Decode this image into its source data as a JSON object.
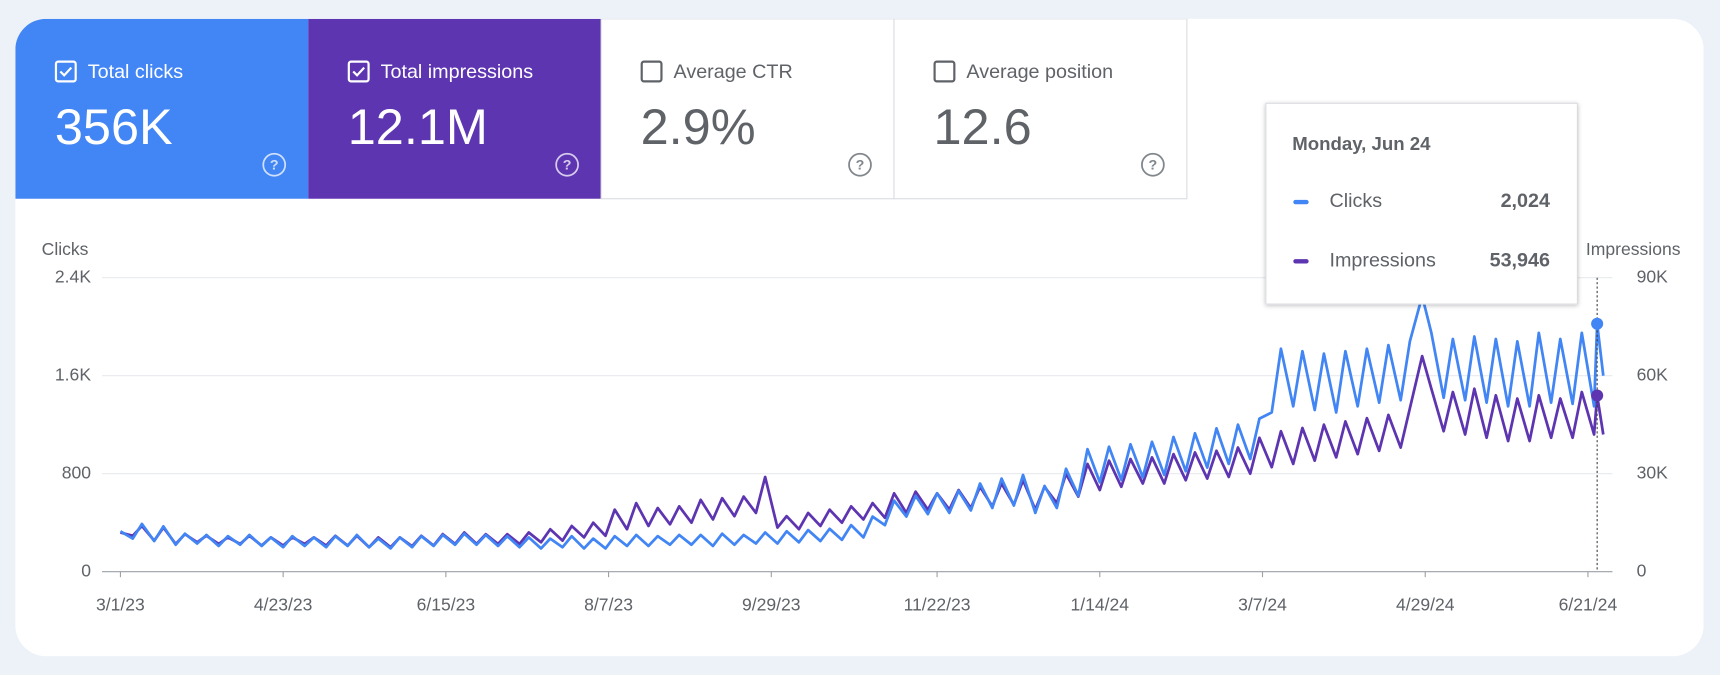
{
  "metrics": [
    {
      "label": "Total clicks",
      "value": "356K",
      "checked": true,
      "color": "#4285f4"
    },
    {
      "label": "Total impressions",
      "value": "12.1M",
      "checked": true,
      "color": "#5e35b1"
    },
    {
      "label": "Average CTR",
      "value": "2.9%",
      "checked": false
    },
    {
      "label": "Average position",
      "value": "12.6",
      "checked": false
    }
  ],
  "chart_data": {
    "type": "line",
    "ylabel": "Clicks",
    "y2label": "Impressions",
    "grid": true,
    "x": [
      "3/1/23",
      "3/5/23",
      "3/8/23",
      "3/12/23",
      "3/15/23",
      "3/19/23",
      "3/22/23",
      "3/26/23",
      "3/29/23",
      "4/2/23",
      "4/5/23",
      "4/9/23",
      "4/12/23",
      "4/16/23",
      "4/19/23",
      "4/23/23",
      "4/26/23",
      "4/30/23",
      "5/3/23",
      "5/7/23",
      "5/10/23",
      "5/14/23",
      "5/17/23",
      "5/21/23",
      "5/24/23",
      "5/28/23",
      "5/31/23",
      "6/4/23",
      "6/7/23",
      "6/11/23",
      "6/14/23",
      "6/18/23",
      "6/21/23",
      "6/25/23",
      "6/28/23",
      "7/2/23",
      "7/5/23",
      "7/9/23",
      "7/12/23",
      "7/16/23",
      "7/19/23",
      "7/23/23",
      "7/26/23",
      "7/30/23",
      "8/2/23",
      "8/6/23",
      "8/9/23",
      "8/13/23",
      "8/16/23",
      "8/20/23",
      "8/23/23",
      "8/27/23",
      "8/30/23",
      "9/3/23",
      "9/6/23",
      "9/10/23",
      "9/13/23",
      "9/17/23",
      "9/20/23",
      "9/24/23",
      "9/27/23",
      "10/1/23",
      "10/4/23",
      "10/8/23",
      "10/11/23",
      "10/15/23",
      "10/18/23",
      "10/22/23",
      "10/25/23",
      "10/29/23",
      "11/1/23",
      "11/5/23",
      "11/8/23",
      "11/12/23",
      "11/15/23",
      "11/19/23",
      "11/22/23",
      "11/26/23",
      "11/29/23",
      "12/3/23",
      "12/6/23",
      "12/10/23",
      "12/13/23",
      "12/17/23",
      "12/20/23",
      "12/24/23",
      "12/27/23",
      "12/31/23",
      "1/3/24",
      "1/7/24",
      "1/10/24",
      "1/14/24",
      "1/17/24",
      "1/21/24",
      "1/24/24",
      "1/28/24",
      "1/31/24",
      "2/4/24",
      "2/7/24",
      "2/11/24",
      "2/14/24",
      "2/18/24",
      "2/21/24",
      "2/25/24",
      "2/28/24",
      "3/3/24",
      "3/6/24",
      "3/10/24",
      "3/13/24",
      "3/17/24",
      "3/20/24",
      "3/24/24",
      "3/27/24",
      "3/31/24",
      "4/3/24",
      "4/7/24",
      "4/10/24",
      "4/14/24",
      "4/17/24",
      "4/21/24",
      "4/24/24",
      "4/28/24",
      "5/1/24",
      "5/5/24",
      "5/8/24",
      "5/12/24",
      "5/15/24",
      "5/19/24",
      "5/22/24",
      "5/26/24",
      "5/29/24",
      "6/2/24",
      "6/5/24",
      "6/9/24",
      "6/12/24",
      "6/16/24",
      "6/19/24",
      "6/23/24",
      "6/24/24",
      "6/26/24"
    ],
    "series": [
      {
        "name": "Clicks",
        "color": "#4285f4",
        "values": [
          330,
          270,
          390,
          250,
          370,
          220,
          310,
          230,
          300,
          210,
          290,
          220,
          300,
          210,
          280,
          200,
          290,
          210,
          280,
          200,
          290,
          210,
          300,
          200,
          270,
          190,
          280,
          200,
          290,
          210,
          300,
          220,
          310,
          220,
          300,
          210,
          290,
          200,
          280,
          190,
          270,
          200,
          290,
          190,
          270,
          190,
          290,
          210,
          300,
          210,
          290,
          220,
          300,
          220,
          300,
          210,
          310,
          220,
          300,
          230,
          320,
          230,
          330,
          240,
          340,
          250,
          350,
          260,
          380,
          280,
          450,
          380,
          580,
          450,
          620,
          470,
          640,
          480,
          660,
          500,
          720,
          520,
          760,
          540,
          790,
          480,
          700,
          520,
          840,
          620,
          1000,
          730,
          1020,
          750,
          1040,
          770,
          1060,
          790,
          1100,
          820,
          1130,
          850,
          1170,
          880,
          1200,
          920,
          1250,
          1300,
          1820,
          1350,
          1800,
          1320,
          1780,
          1300,
          1800,
          1350,
          1820,
          1380,
          1850,
          1400,
          1880,
          2250,
          1950,
          1420,
          1900,
          1400,
          1920,
          1380,
          1900,
          1350,
          1880,
          1350,
          1950,
          1380,
          1900,
          1370,
          1950,
          1350,
          2024,
          1600
        ]
      },
      {
        "name": "Impressions",
        "color": "#5e35b1",
        "axis": "y2",
        "values": [
          12000,
          11000,
          14000,
          9500,
          13500,
          8500,
          11500,
          9000,
          11000,
          8500,
          10500,
          8500,
          11000,
          8000,
          10500,
          8000,
          10500,
          8500,
          10500,
          8000,
          11000,
          8000,
          11000,
          7500,
          10500,
          7500,
          10500,
          7800,
          11000,
          8000,
          11500,
          8500,
          12000,
          8500,
          11500,
          8500,
          11500,
          8500,
          12000,
          9000,
          13000,
          9500,
          14000,
          10500,
          15000,
          11000,
          19000,
          13000,
          21000,
          14000,
          19500,
          14500,
          20000,
          15000,
          22000,
          16000,
          22500,
          17000,
          23000,
          18000,
          29000,
          13500,
          17000,
          13000,
          18000,
          14000,
          19000,
          15000,
          20000,
          16000,
          21000,
          16500,
          24000,
          18000,
          24500,
          19000,
          24000,
          19000,
          25000,
          19500,
          26000,
          20000,
          27000,
          20500,
          28000,
          19000,
          26000,
          21000,
          30000,
          23000,
          33000,
          25000,
          34000,
          26000,
          34500,
          27000,
          35000,
          27000,
          36000,
          28000,
          36500,
          28500,
          37000,
          29000,
          38000,
          30000,
          41000,
          32000,
          43000,
          33000,
          44000,
          34000,
          45000,
          35000,
          46000,
          36000,
          47000,
          37000,
          48000,
          38000,
          50000,
          66000,
          56000,
          43000,
          55000,
          42000,
          56000,
          41000,
          54000,
          40000,
          53000,
          40000,
          54000,
          41000,
          53000,
          41000,
          55000,
          42000,
          53946,
          42000
        ]
      }
    ],
    "xlim": [
      "2/23/23",
      "6/29/24"
    ],
    "xticks": [
      "3/1/23",
      "4/23/23",
      "6/15/23",
      "8/7/23",
      "9/29/23",
      "11/22/23",
      "1/14/24",
      "3/7/24",
      "4/29/24",
      "6/21/24"
    ],
    "ylim": [
      0,
      2400
    ],
    "yticks": [
      0,
      800,
      {
        "value": 1600,
        "label": "1.6K"
      },
      {
        "value": 2400,
        "label": "2.4K"
      }
    ],
    "y2lim": [
      0,
      90000
    ],
    "y2ticks": [
      0,
      {
        "value": 30000,
        "label": "30K"
      },
      {
        "value": 60000,
        "label": "60K"
      },
      {
        "value": 90000,
        "label": "90K"
      }
    ]
  },
  "tooltip": {
    "title": "Monday, Jun 24",
    "labels": [
      "2,024",
      "53,946"
    ]
  }
}
